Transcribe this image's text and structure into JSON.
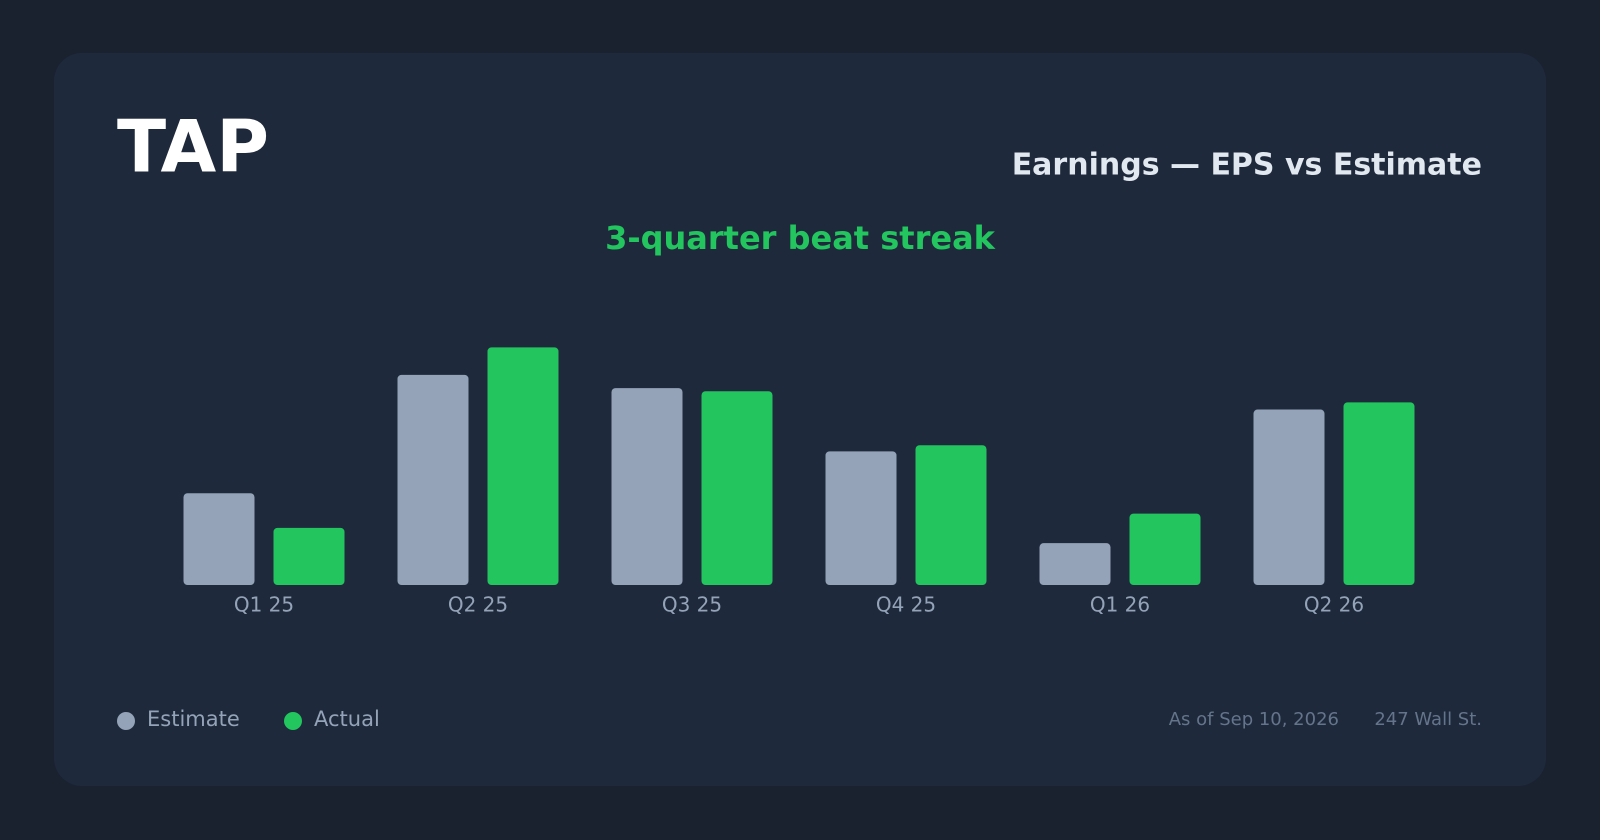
{
  "chart_data": {
    "type": "bar",
    "title": "TAP",
    "subtitle": "Earnings — EPS vs Estimate",
    "annotation": "3-quarter beat streak",
    "categories": [
      "Q1 25",
      "Q2 25",
      "Q3 25",
      "Q4 25",
      "Q1 26",
      "Q2 26"
    ],
    "series": [
      {
        "name": "Estimate",
        "color": "#94a3b8",
        "values": [
          0.9,
          2.06,
          1.93,
          1.31,
          0.41,
          1.72
        ]
      },
      {
        "name": "Actual",
        "color": "#22c55e",
        "values": [
          0.56,
          2.33,
          1.9,
          1.37,
          0.7,
          1.79
        ]
      }
    ],
    "ylim": [
      0,
      2.5
    ],
    "as_of": "As of Sep 10, 2026",
    "source": "247 Wall St."
  }
}
